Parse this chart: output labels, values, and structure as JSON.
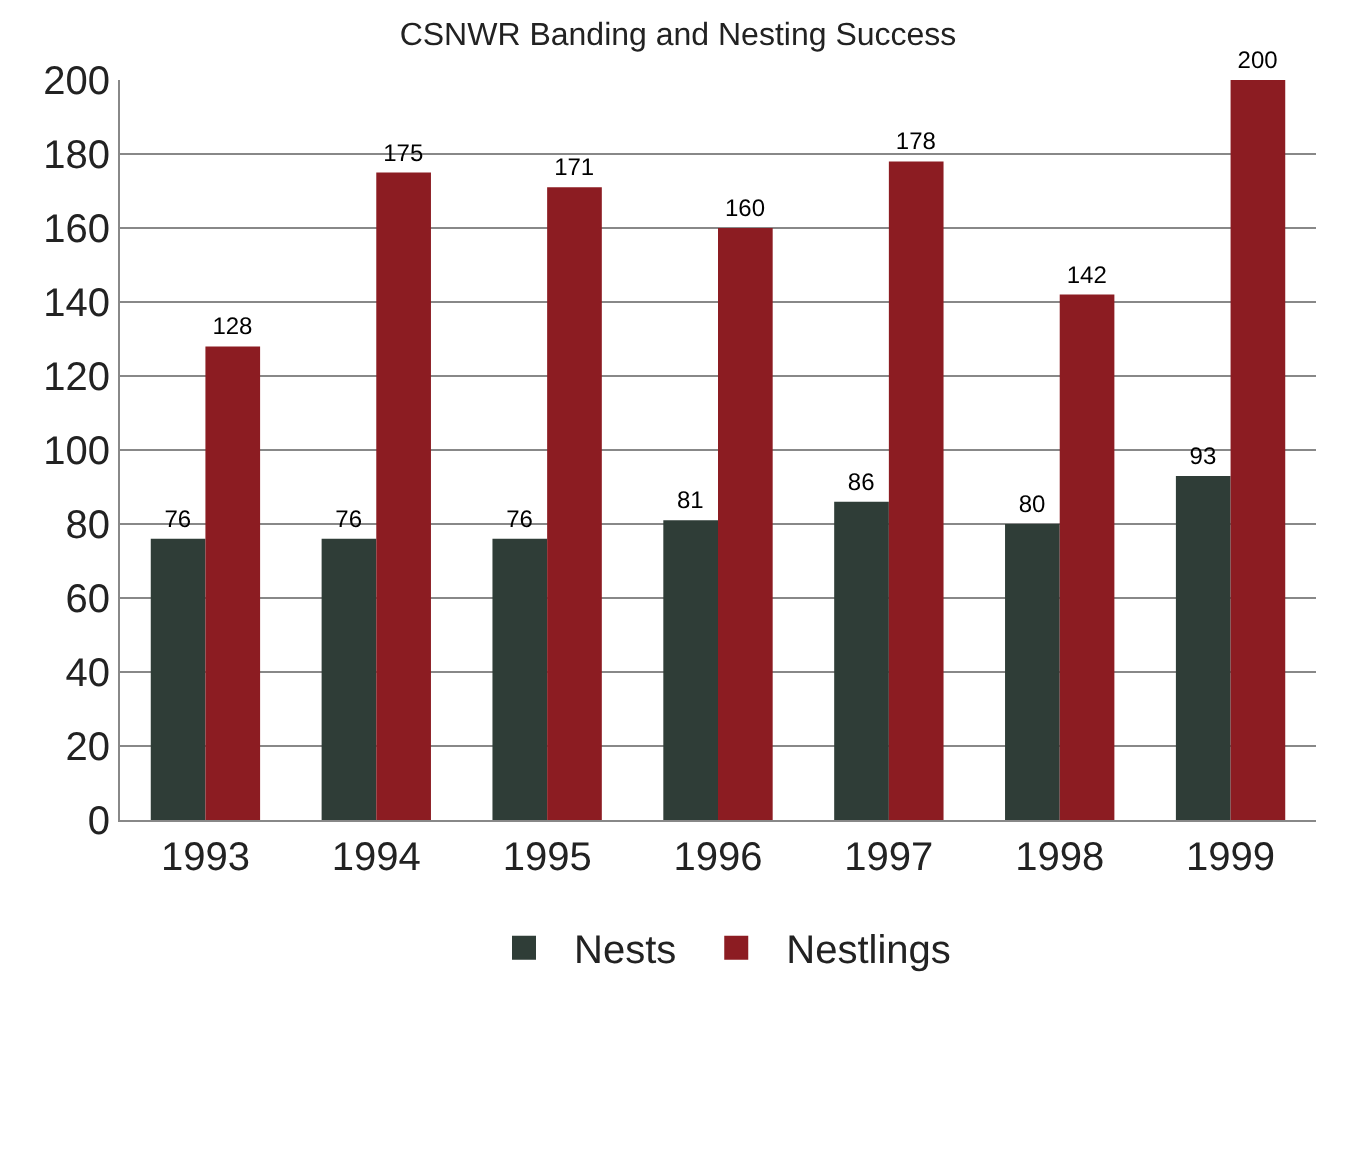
{
  "chart_data": {
    "type": "bar",
    "title": "CSNWR Banding and Nesting Success",
    "categories": [
      "1993",
      "1994",
      "1995",
      "1996",
      "1997",
      "1998",
      "1999"
    ],
    "series": [
      {
        "name": "Nests",
        "color": "#2f3d37",
        "values": [
          76,
          76,
          76,
          81,
          86,
          80,
          93
        ]
      },
      {
        "name": "Nestlings",
        "color": "#8c1c22",
        "values": [
          128,
          175,
          171,
          160,
          178,
          142,
          200
        ]
      }
    ],
    "ylim": [
      0,
      200
    ],
    "yticks": [
      0,
      20,
      40,
      60,
      80,
      100,
      120,
      140,
      160,
      180,
      200
    ],
    "grid": "y",
    "legend": "bottom",
    "data_labels": true
  }
}
